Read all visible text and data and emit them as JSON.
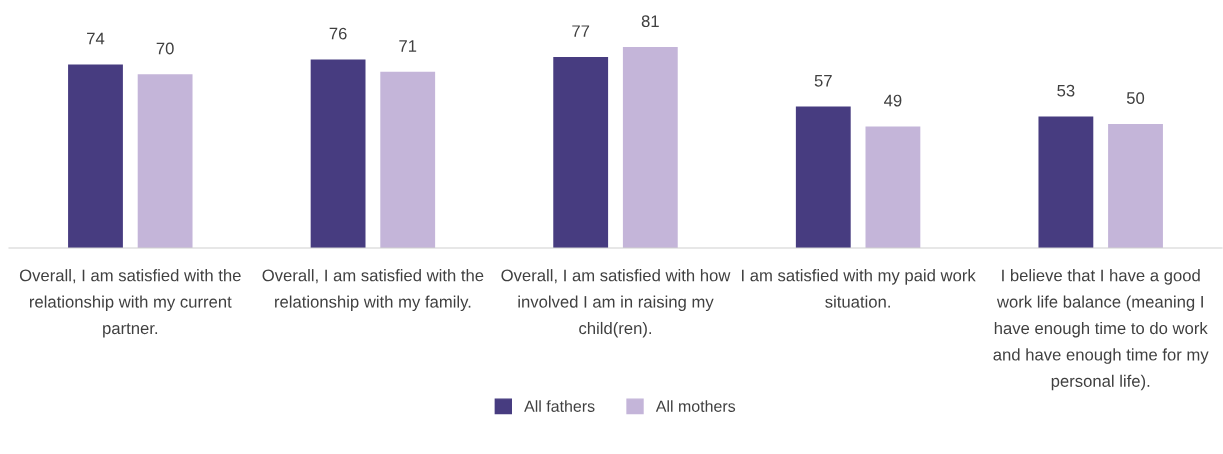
{
  "chart_data": {
    "type": "bar",
    "categories": [
      "Overall, I am satisfied with the relationship with my current partner.",
      "Overall, I am satisfied with the relationship with my family.",
      "Overall, I am satisfied with how involved I am in raising my child(ren).",
      "I am satisfied with my paid work situation.",
      "I believe that I have a good work life balance (meaning I have enough time to do work and have enough time for my personal life)."
    ],
    "series": [
      {
        "name": "All fathers",
        "color": "#473c80",
        "values": [
          74,
          76,
          77,
          57,
          53
        ]
      },
      {
        "name": "All mothers",
        "color": "#c4b5d9",
        "values": [
          70,
          71,
          81,
          49,
          50
        ]
      }
    ],
    "data_labels": true,
    "legend": "bottom",
    "grid": false
  }
}
